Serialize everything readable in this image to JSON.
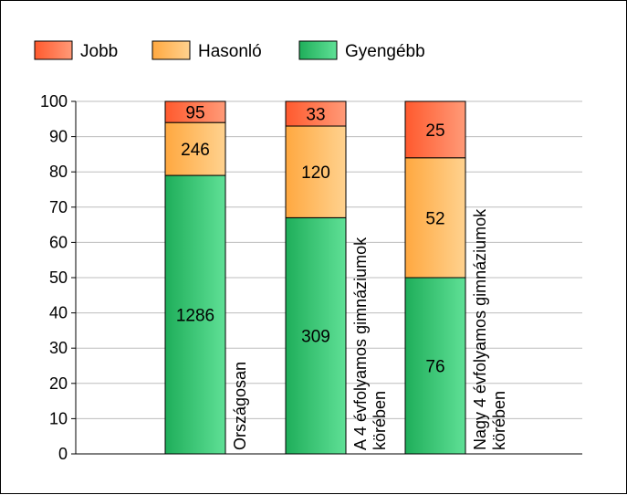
{
  "chart_data": {
    "type": "bar",
    "stacked": true,
    "categories": [
      "Országosan",
      "A 4 évfolyamos gimnáziumok körében",
      "Nagy 4 évfolyamos gimnáziumok körében"
    ],
    "series": [
      {
        "name": "Gyengébb",
        "color": "#2ebd6b",
        "values": [
          79,
          67,
          50
        ],
        "labels": [
          "1286",
          "309",
          "76"
        ]
      },
      {
        "name": "Hasonló",
        "color": "#ffb85c",
        "values": [
          15,
          26,
          34
        ],
        "labels": [
          "246",
          "120",
          "52"
        ]
      },
      {
        "name": "Jobb",
        "color": "#ff6e48",
        "values": [
          6,
          7,
          16
        ],
        "labels": [
          "95",
          "33",
          "25"
        ]
      }
    ],
    "legend_order": [
      "Jobb",
      "Hasonló",
      "Gyengébb"
    ],
    "ylim": [
      0,
      100
    ],
    "yticks": [
      "0",
      "10",
      "20",
      "30",
      "40",
      "50",
      "60",
      "70",
      "80",
      "90",
      "100"
    ],
    "grid": true,
    "legend_position": "top-left"
  }
}
